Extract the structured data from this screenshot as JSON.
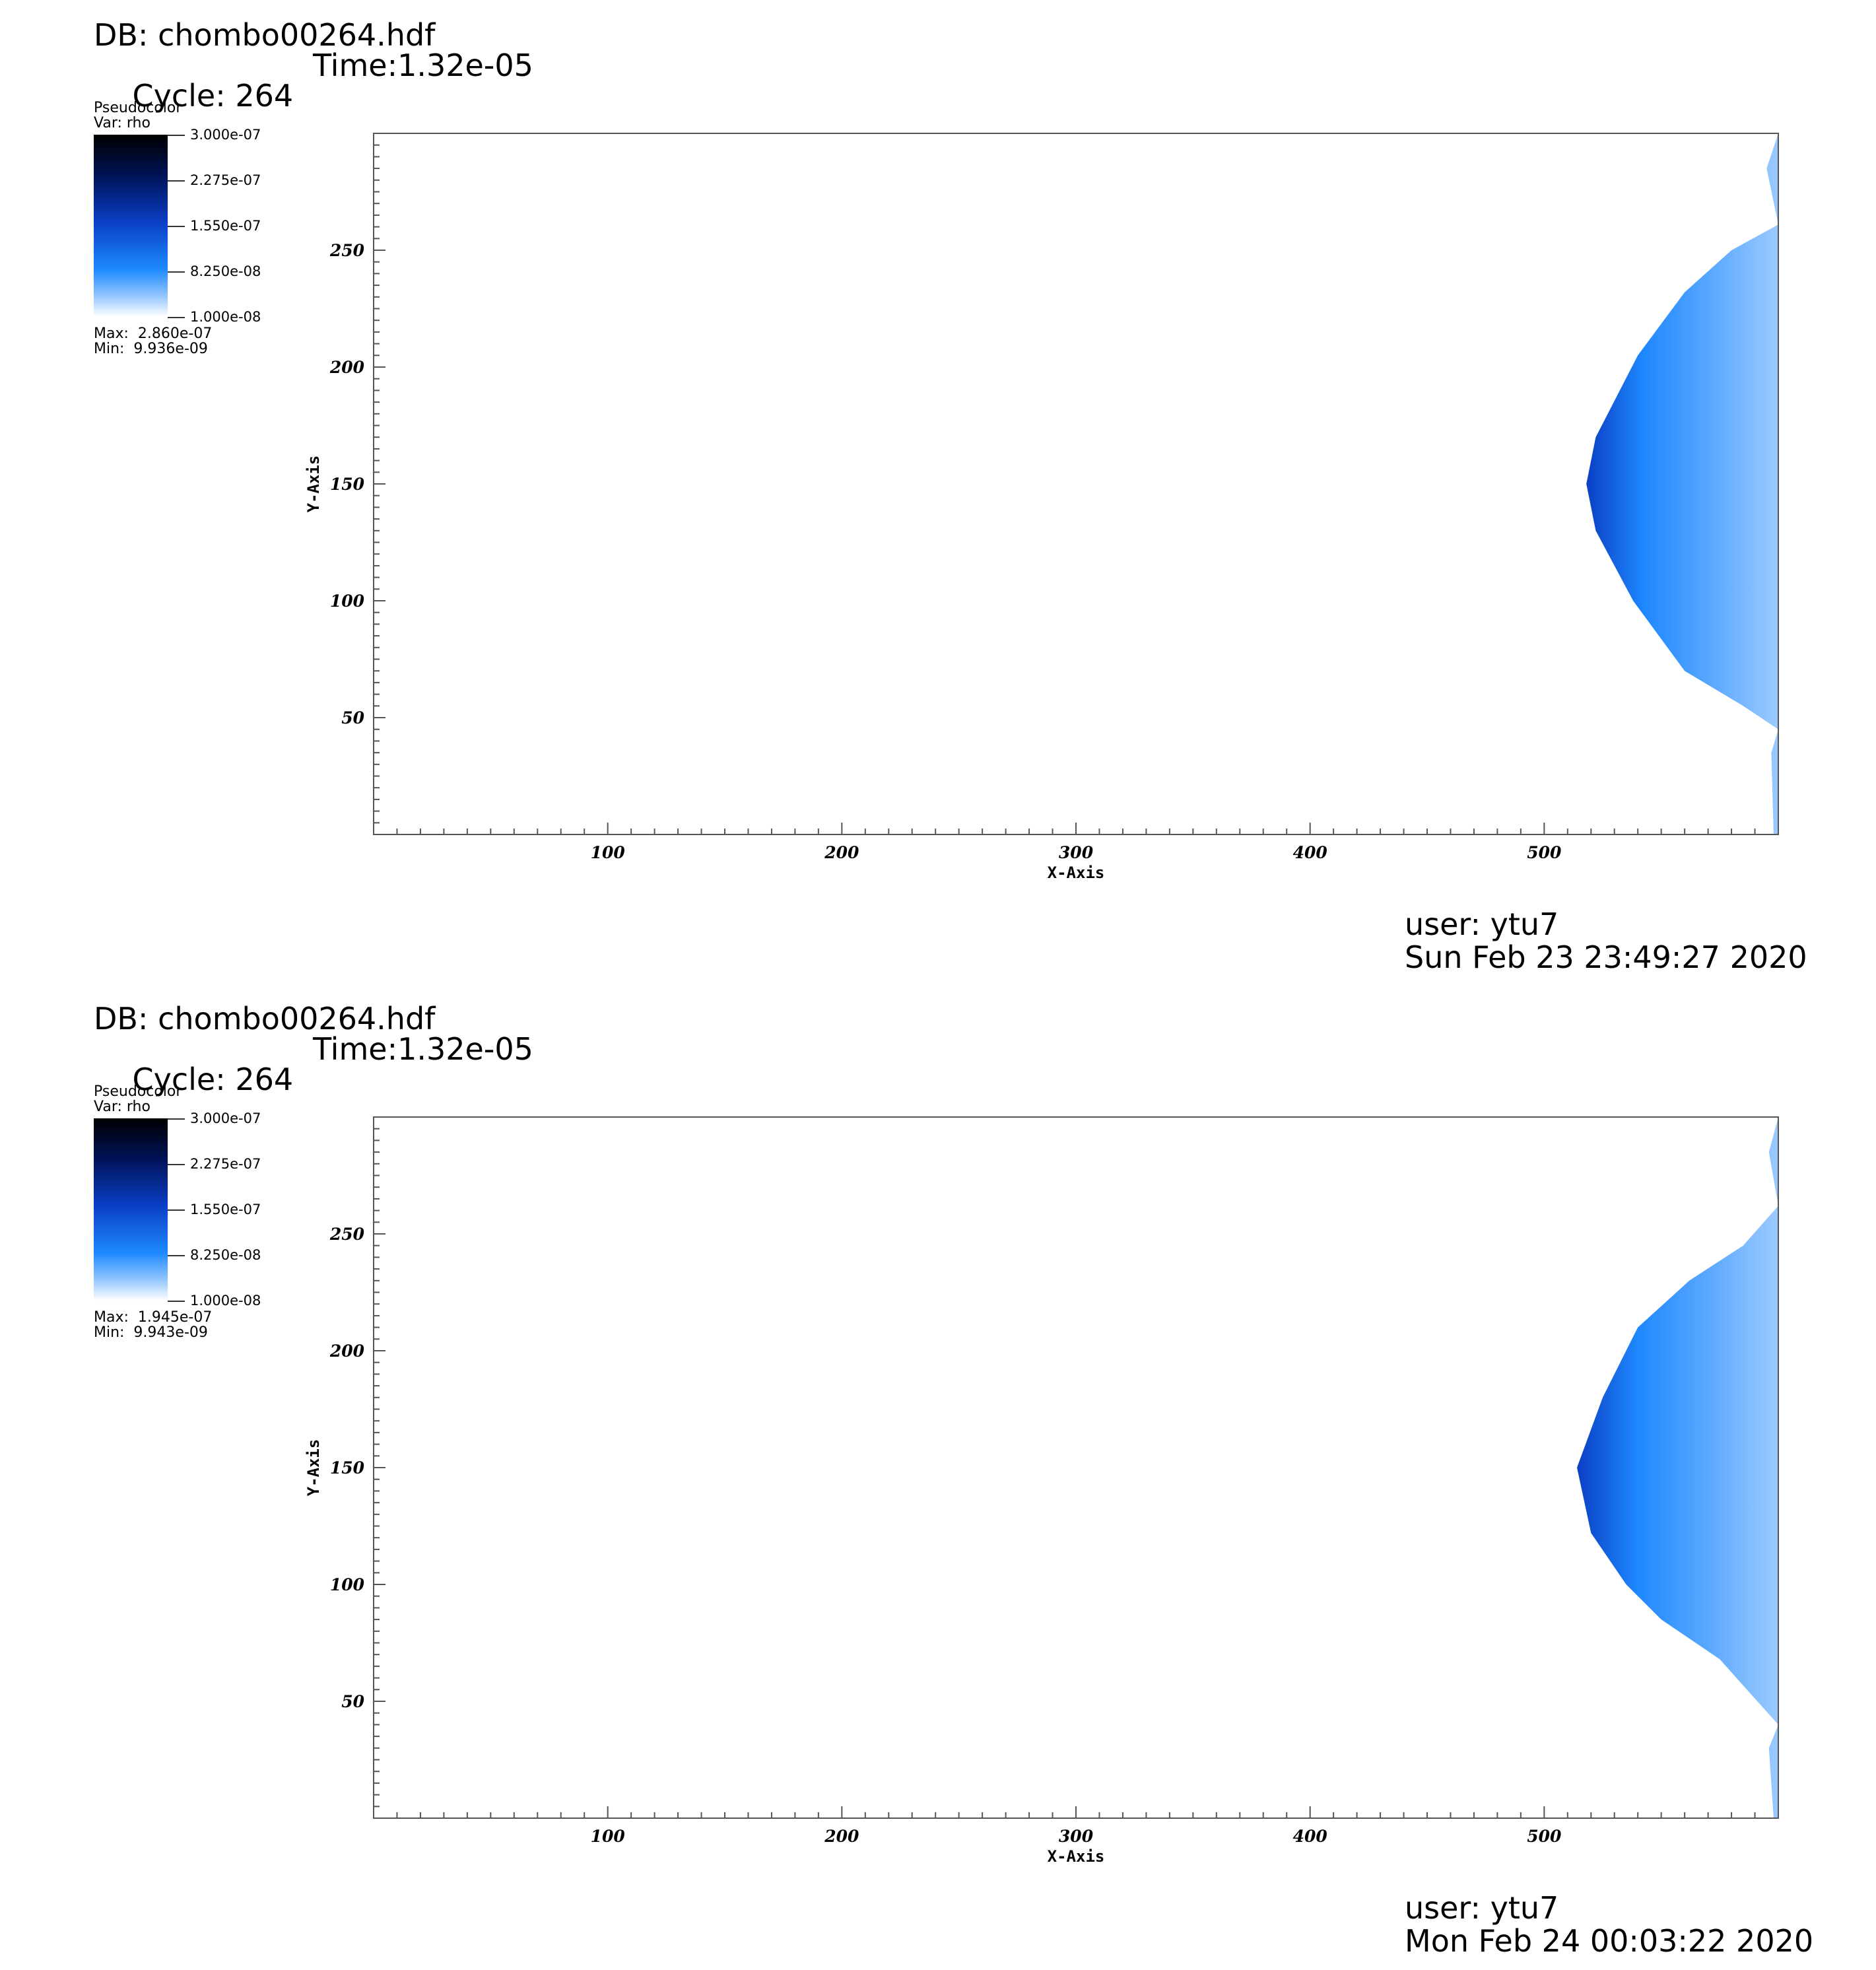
{
  "panels": [
    {
      "db_label": "DB: chombo00264.hdf",
      "cycle_label": "Cycle: 264",
      "time_label": "Time:1.32e-05",
      "legend": {
        "plot_type": "Pseudocolor",
        "var_label": "Var: rho",
        "ticks": [
          "3.000e-07",
          "2.275e-07",
          "1.550e-07",
          "8.250e-08",
          "1.000e-08"
        ],
        "max_label": "Max:  2.860e-07",
        "min_label": "Min:  9.936e-09"
      },
      "user_label": "user: ytu7",
      "date_label": "Sun Feb 23 23:49:27 2020"
    },
    {
      "db_label": "DB: chombo00264.hdf",
      "cycle_label": "Cycle: 264",
      "time_label": "Time:1.32e-05",
      "legend": {
        "plot_type": "Pseudocolor",
        "var_label": "Var: rho",
        "ticks": [
          "3.000e-07",
          "2.275e-07",
          "1.550e-07",
          "8.250e-08",
          "1.000e-08"
        ],
        "max_label": "Max:  1.945e-07",
        "min_label": "Min:  9.943e-09"
      },
      "user_label": "user: ytu7",
      "date_label": "Mon Feb 24 00:03:22 2020"
    }
  ],
  "chart_data": [
    {
      "type": "heatmap",
      "variable": "rho",
      "xlabel": "X-Axis",
      "ylabel": "Y-Axis",
      "xlim": [
        0,
        600
      ],
      "ylim": [
        0,
        300
      ],
      "x_ticks": [
        100,
        200,
        300,
        400,
        500
      ],
      "y_ticks": [
        50,
        100,
        150,
        200,
        250
      ],
      "color_range": [
        1e-08,
        3e-07
      ],
      "colormap": [
        "#ffffff",
        "#1e88ff",
        "#0b3fc4",
        "#000000"
      ],
      "value_max": 2.86e-07,
      "value_min": 9.936e-09,
      "front_profile": [
        [
          600,
          300
        ],
        [
          595,
          285
        ],
        [
          600,
          261
        ],
        [
          580,
          250
        ],
        [
          560,
          232
        ],
        [
          540,
          205
        ],
        [
          522,
          170
        ],
        [
          518,
          150
        ],
        [
          522,
          130
        ],
        [
          538,
          100
        ],
        [
          560,
          70
        ],
        [
          585,
          55
        ],
        [
          600,
          45
        ],
        [
          597,
          35
        ],
        [
          598,
          0
        ]
      ]
    },
    {
      "type": "heatmap",
      "variable": "rho",
      "xlabel": "X-Axis",
      "ylabel": "Y-Axis",
      "xlim": [
        0,
        600
      ],
      "ylim": [
        0,
        300
      ],
      "x_ticks": [
        100,
        200,
        300,
        400,
        500
      ],
      "y_ticks": [
        50,
        100,
        150,
        200,
        250
      ],
      "color_range": [
        1e-08,
        3e-07
      ],
      "colormap": [
        "#ffffff",
        "#1e88ff",
        "#0b3fc4",
        "#000000"
      ],
      "value_max": 1.945e-07,
      "value_min": 9.943e-09,
      "front_profile": [
        [
          600,
          300
        ],
        [
          596,
          285
        ],
        [
          600,
          262
        ],
        [
          585,
          245
        ],
        [
          562,
          230
        ],
        [
          540,
          210
        ],
        [
          525,
          180
        ],
        [
          514,
          150
        ],
        [
          520,
          122
        ],
        [
          535,
          100
        ],
        [
          550,
          85
        ],
        [
          575,
          68
        ],
        [
          600,
          40
        ],
        [
          596,
          30
        ],
        [
          598,
          0
        ]
      ]
    }
  ]
}
